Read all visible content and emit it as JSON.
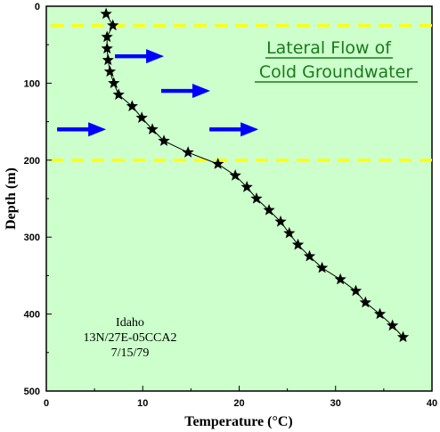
{
  "chart_data": {
    "type": "scatter",
    "xlabel": "Temperature (°C)",
    "ylabel": "Depth (m)",
    "xlim": [
      0,
      40
    ],
    "ylim": [
      0,
      500
    ],
    "y_inverted": true,
    "x_ticks": [
      "0",
      "10",
      "20",
      "30",
      "40"
    ],
    "y_ticks": [
      "0",
      "100",
      "200",
      "300",
      "400",
      "500"
    ],
    "grid": false,
    "plot_background": "#ccffcc",
    "marker": "star",
    "line_color": "#000000",
    "series": [
      {
        "x": [
          6.2,
          6.9,
          6.3,
          6.3,
          6.4,
          6.6,
          7.0,
          7.5,
          8.9,
          9.9,
          11.0,
          12.2,
          14.7,
          17.8,
          19.6,
          20.8,
          21.8,
          23.1,
          24.3,
          25.2,
          26.1,
          27.3,
          28.6,
          30.5,
          32.1,
          33.1,
          34.6,
          35.9,
          37.0
        ],
        "y": [
          10,
          25,
          40,
          55,
          70,
          85,
          100,
          115,
          130,
          145,
          160,
          175,
          190,
          205,
          220,
          235,
          250,
          265,
          280,
          295,
          310,
          325,
          340,
          355,
          370,
          385,
          400,
          415,
          430
        ]
      }
    ],
    "reference_lines": [
      {
        "orientation": "horizontal",
        "y": 25,
        "color": "#ffff00",
        "style": "dashed"
      },
      {
        "orientation": "horizontal",
        "y": 200,
        "color": "#ffff00",
        "style": "dashed"
      }
    ],
    "arrows": [
      {
        "x": 12.2,
        "y": 65,
        "direction": "left",
        "color": "#0000ff"
      },
      {
        "x": 17.0,
        "y": 110,
        "direction": "left",
        "color": "#0000ff"
      },
      {
        "x": 6.2,
        "y": 160,
        "direction": "left",
        "color": "#0000ff"
      },
      {
        "x": 22.0,
        "y": 160,
        "direction": "left",
        "color": "#0000ff"
      }
    ],
    "annotations": {
      "title_line1": "Lateral Flow of",
      "title_line2": "Cold Groundwater",
      "title_color": "#1a7a1a",
      "station_line1": "Idaho",
      "station_line2": "13N/27E-05CCA2",
      "station_line3": "7/15/79"
    }
  }
}
